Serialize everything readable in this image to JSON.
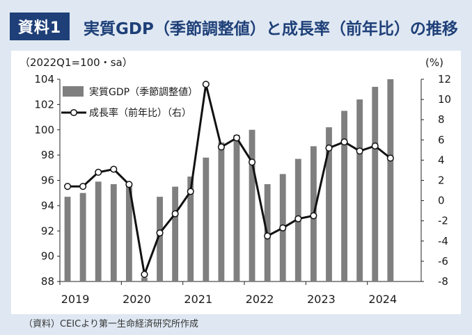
{
  "header": {
    "badge": "資料1",
    "title": "実質GDP（季節調整値）と成長率（前年比）の推移"
  },
  "source": "（資料）CEICより第一生命経済研究所作成",
  "colors": {
    "bar": "#7f7f7f",
    "line": "#111111",
    "marker_fill": "#ffffff",
    "badge_bg": "#1e3f78",
    "title": "#1e3f78",
    "panel_bg": "#dfe8f2"
  },
  "chart_data": {
    "type": "bar",
    "title": "実質GDP（季節調整値）と成長率（前年比）の推移",
    "left_axis_label": "（2022Q1=100・sa）",
    "right_axis_label": "(%)",
    "ylim_left": [
      88,
      104
    ],
    "yticks_left": [
      "88",
      "90",
      "92",
      "94",
      "96",
      "98",
      "100",
      "102",
      "104"
    ],
    "ylim_right": [
      -8,
      12
    ],
    "yticks_right": [
      "-8",
      "-6",
      "-4",
      "-2",
      "0",
      "2",
      "4",
      "6",
      "8",
      "10",
      "12"
    ],
    "categories": [
      "2019Q1",
      "2019Q2",
      "2019Q3",
      "2019Q4",
      "2020Q1",
      "2020Q2",
      "2020Q3",
      "2020Q4",
      "2021Q1",
      "2021Q2",
      "2021Q3",
      "2021Q4",
      "2022Q1",
      "2022Q2",
      "2022Q3",
      "2022Q4",
      "2023Q1",
      "2023Q2",
      "2023Q3",
      "2023Q4",
      "2024Q1",
      "2024Q2",
      "2024Q3"
    ],
    "x_tick_labels": [
      "2019",
      "2020",
      "2021",
      "2022",
      "2023",
      "2024"
    ],
    "x_tick_index": [
      0,
      4,
      8,
      12,
      16,
      20
    ],
    "series": [
      {
        "name": "実質GDP（季節調整値）",
        "type": "bar",
        "axis": "left",
        "values": [
          94.7,
          95.0,
          95.9,
          95.7,
          95.6,
          88.3,
          94.7,
          95.5,
          96.3,
          97.8,
          99.0,
          99.6,
          100.0,
          95.7,
          96.5,
          97.7,
          98.7,
          100.2,
          101.5,
          102.4,
          103.4,
          104.0,
          null
        ]
      },
      {
        "name": "成長率（前年比）（右）",
        "type": "line",
        "axis": "right",
        "values": [
          1.4,
          1.4,
          2.8,
          3.1,
          1.6,
          -7.3,
          -3.2,
          -1.3,
          0.9,
          11.5,
          5.3,
          6.2,
          3.8,
          -3.5,
          -2.7,
          -1.8,
          -1.5,
          5.2,
          5.8,
          4.9,
          5.4,
          4.2,
          null
        ]
      }
    ],
    "legend_position": "top-left"
  }
}
